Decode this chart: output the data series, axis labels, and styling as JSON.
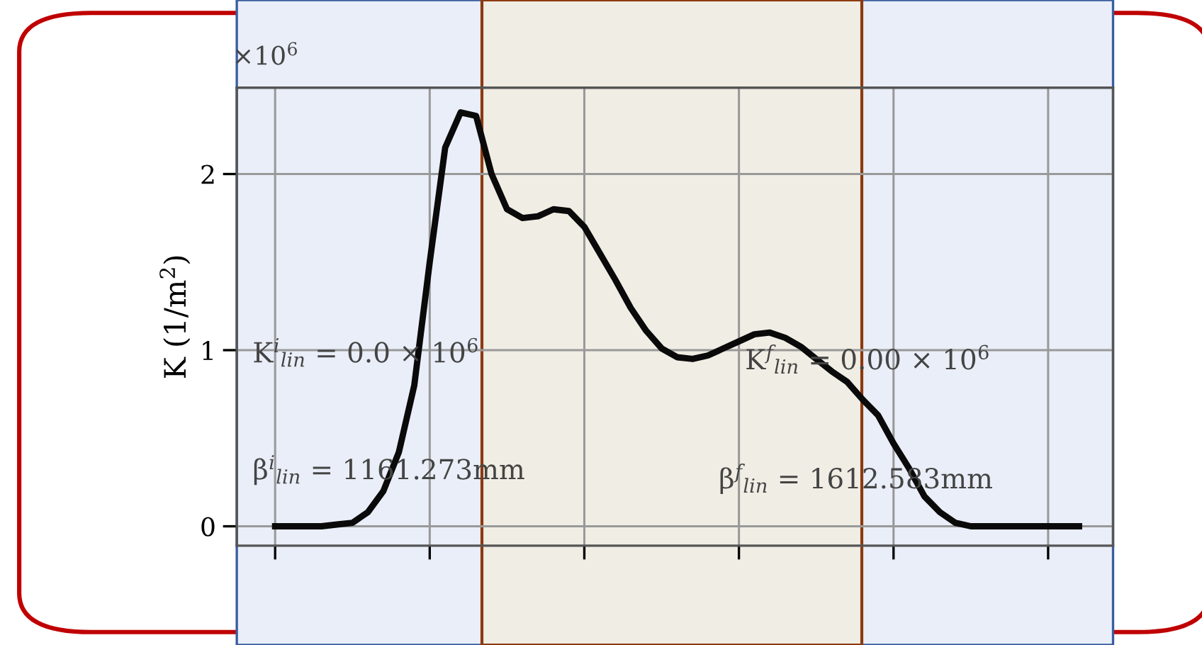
{
  "chart_data": {
    "type": "line",
    "ylabel": "K (1/m$^{2}$)",
    "categories": [
      null,
      null,
      null,
      null,
      null,
      null,
      null,
      null,
      null,
      null,
      null,
      null,
      null,
      null,
      null,
      null,
      null,
      null,
      null,
      null,
      null,
      null,
      null,
      null,
      null,
      null,
      null,
      null,
      null,
      null,
      null,
      null,
      null,
      null,
      null,
      null,
      null,
      null,
      null,
      null,
      null,
      null,
      null,
      null,
      null,
      null,
      null,
      null,
      null,
      null,
      null,
      null,
      null
    ],
    "series": [
      {
        "color": "#0a0a0a",
        "values": [
          0,
          0,
          0,
          0,
          0.01,
          0.02,
          0.08,
          0.2,
          0.42,
          0.8,
          1.5,
          2.15,
          2.35,
          2.33,
          2.0,
          1.8,
          1.75,
          1.76,
          1.8,
          1.79,
          1.7,
          1.55,
          1.4,
          1.24,
          1.11,
          1.01,
          0.96,
          0.95,
          0.97,
          1.01,
          1.05,
          1.09,
          1.1,
          1.07,
          1.02,
          0.95,
          0.88,
          0.82,
          0.72,
          0.63,
          0.47,
          0.33,
          0.17,
          0.08,
          0.02,
          0,
          0,
          0,
          0,
          0,
          0,
          0,
          0
        ]
      }
    ],
    "ylim": [
      -0.11,
      2.49
    ],
    "yticks": [
      0,
      1,
      2
    ],
    "grid": true,
    "annotations": [
      "×10$^{6}$",
      "K$^{i}$$_{lin}$ = 0.0 × 10$^{6}$",
      "β$^{i}$$_{lin}$ = 1161.273mm",
      "K$^{f}$$_{lin}$ = 0.00 × 10$^{6}$",
      "β$^{f}$$_{lin}$ = 1612.583mm"
    ]
  }
}
